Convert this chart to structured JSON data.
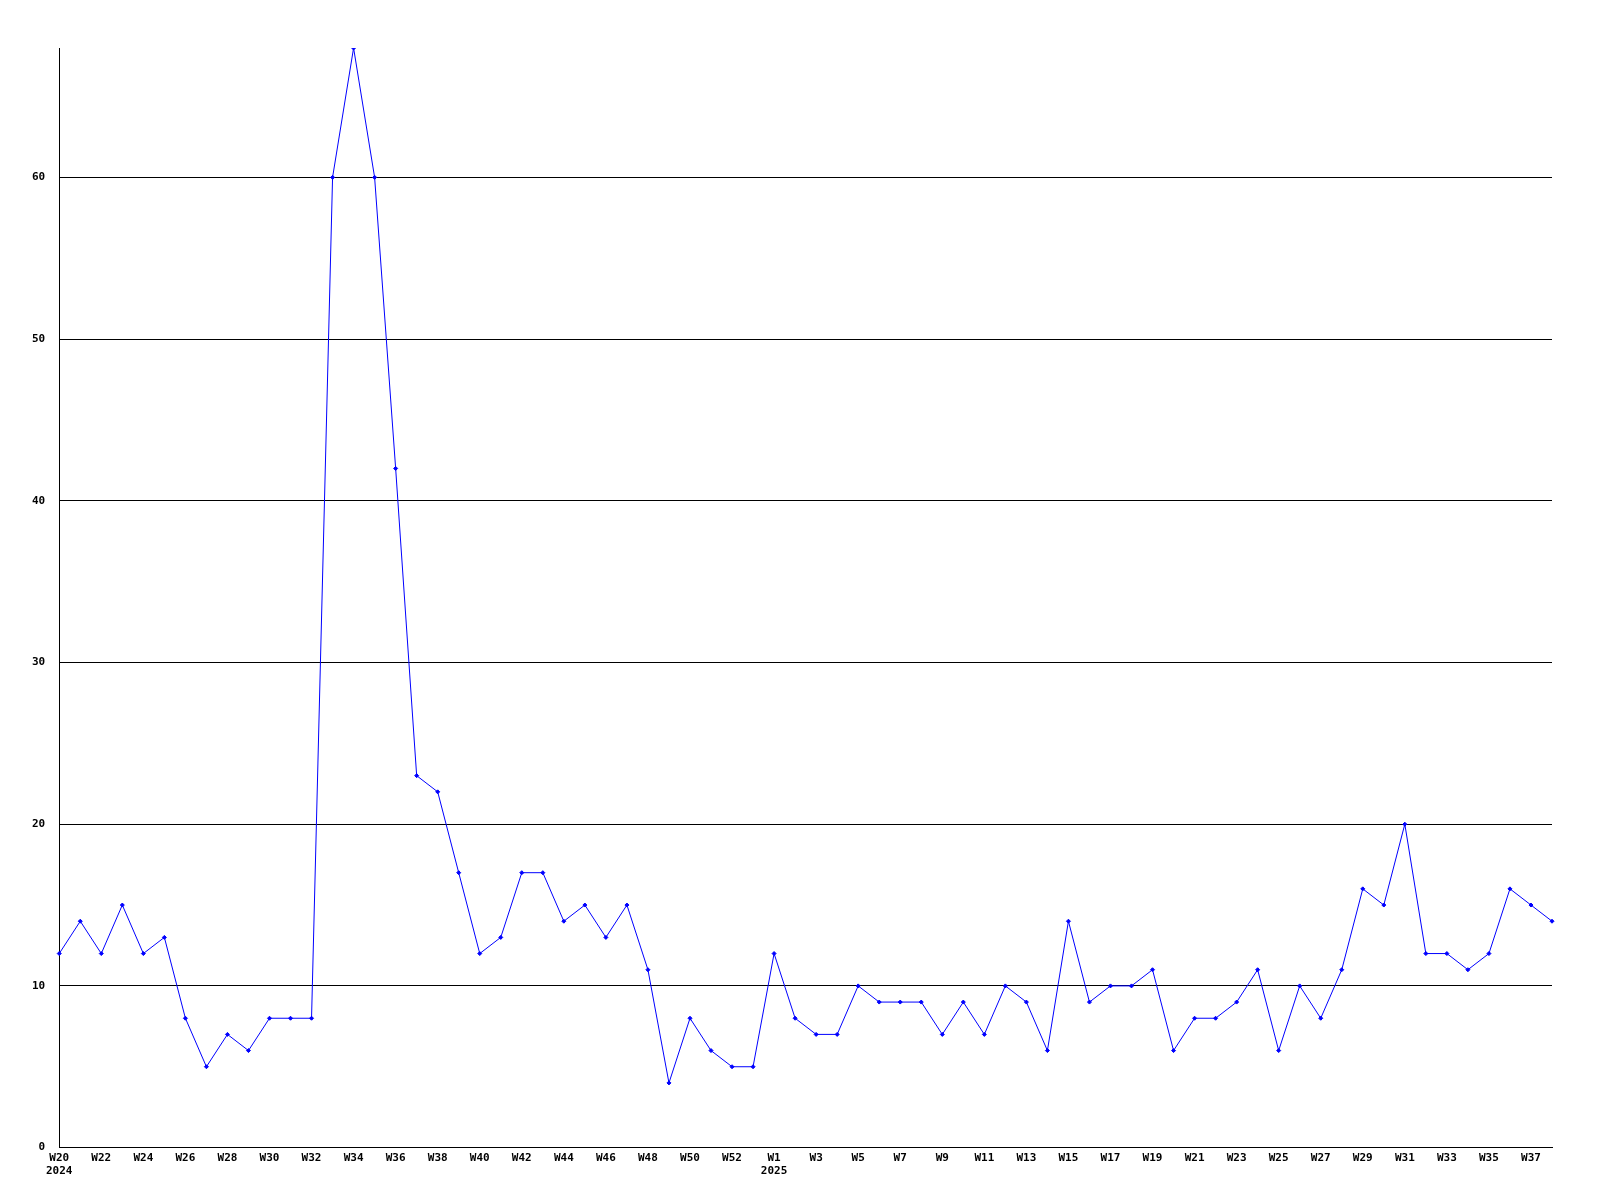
{
  "chart_data": {
    "type": "line",
    "categories": [
      "W20\n2024",
      null,
      "W22",
      null,
      "W24",
      null,
      "W26",
      null,
      "W28",
      null,
      "W30",
      null,
      "W32",
      null,
      "W34",
      null,
      "W36",
      null,
      "W38",
      null,
      "W40",
      null,
      "W42",
      null,
      "W44",
      null,
      "W46",
      null,
      "W48",
      null,
      "W50",
      null,
      "W52",
      null,
      "W1\n2025",
      null,
      "W3",
      null,
      "W5",
      null,
      "W7",
      null,
      "W9",
      null,
      "W11",
      null,
      "W13",
      null,
      "W15",
      null,
      "W17",
      null,
      "W19",
      null,
      "W21",
      null,
      "W23",
      null,
      "W25",
      null,
      "W27",
      null,
      "W29",
      null,
      "W31",
      null,
      "W33",
      null,
      "W35",
      null,
      "W37",
      null
    ],
    "series": [
      {
        "color": "#0000ff",
        "values": [
          12,
          14,
          12,
          15,
          12,
          13,
          8,
          5,
          7,
          6,
          8,
          8,
          8,
          60,
          68,
          60,
          42,
          23,
          22,
          17,
          12,
          13,
          17,
          17,
          14,
          15,
          13,
          15,
          11,
          4,
          8,
          6,
          5,
          5,
          12,
          8,
          7,
          7,
          10,
          9,
          9,
          9,
          7,
          9,
          7,
          10,
          9,
          6,
          14,
          9,
          10,
          10,
          11,
          6,
          8,
          8,
          9,
          11,
          6,
          10,
          8,
          11,
          16,
          15,
          20,
          12,
          12,
          11,
          12,
          16,
          15,
          14
        ]
      }
    ],
    "ylim": [
      0,
      68
    ],
    "yticks": [
      0,
      10,
      20,
      30,
      40,
      50,
      60
    ],
    "grid": "y",
    "marker": "diamond",
    "line_style": "solid",
    "legend": false
  }
}
